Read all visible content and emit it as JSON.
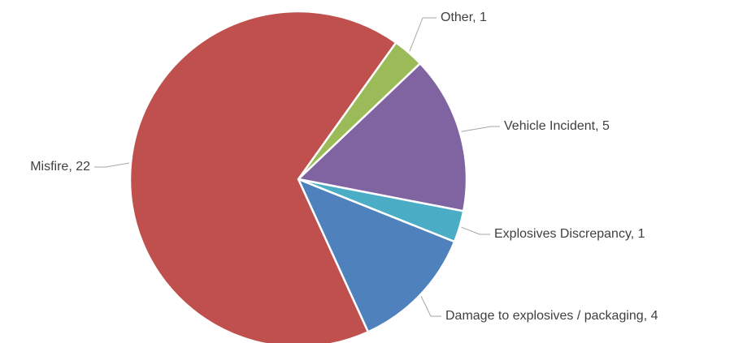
{
  "chart_data": {
    "type": "pie",
    "categories": [
      "Other",
      "Vehicle Incident",
      "Explosives Discrepancy",
      "Damage to explosives / packaging",
      "Misfire"
    ],
    "values": [
      1,
      5,
      1,
      4,
      22
    ],
    "value_labels": [
      "Other, 1",
      "Vehicle Incident, 5",
      "Explosives Discrepancy, 1",
      "Damage to explosives / packaging, 4",
      "Misfire, 22"
    ],
    "colors": [
      "#9bbb59",
      "#8064a2",
      "#4bacc6",
      "#4f81bd",
      "#c0504d"
    ]
  }
}
